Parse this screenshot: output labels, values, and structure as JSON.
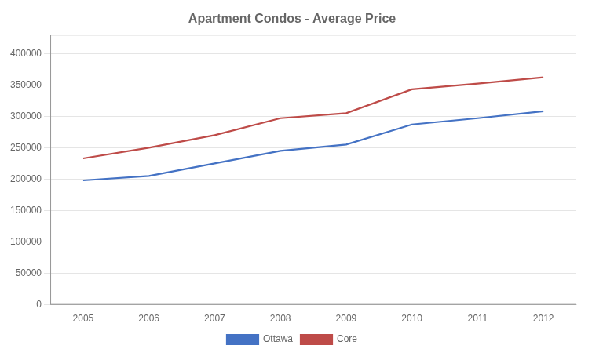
{
  "chart_data": {
    "type": "line",
    "title": "Apartment Condos - Average Price",
    "x": [
      2005,
      2006,
      2007,
      2008,
      2009,
      2010,
      2011,
      2012
    ],
    "series": [
      {
        "name": "Ottawa",
        "color": "#4472C4",
        "values": [
          198000,
          205000,
          225000,
          245000,
          255000,
          287000,
          297000,
          308000
        ]
      },
      {
        "name": "Core",
        "color": "#BE4B48",
        "values": [
          233000,
          250000,
          270000,
          297000,
          305000,
          343000,
          352000,
          362000
        ]
      }
    ],
    "xlim": [
      2004.5,
      2012.5
    ],
    "xticks": [
      2005,
      2006,
      2007,
      2008,
      2009,
      2010,
      2011,
      2012
    ],
    "ylim": [
      0,
      430000
    ],
    "yticks": [
      0,
      50000,
      100000,
      150000,
      200000,
      250000,
      300000,
      350000,
      400000
    ],
    "grid": true,
    "legend": "bottom"
  }
}
